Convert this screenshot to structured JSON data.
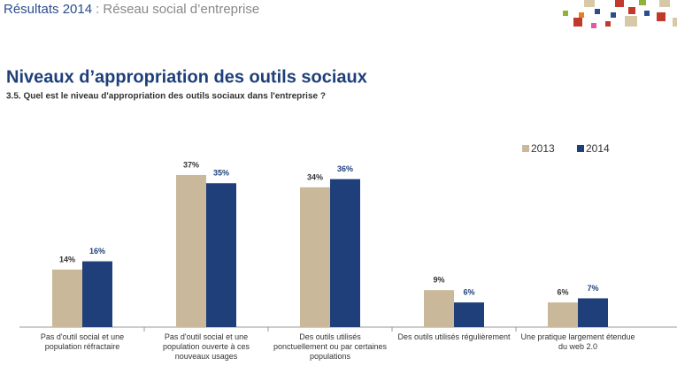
{
  "header": {
    "section": "Résultats 2014",
    "topic": ": Réseau social d’entreprise"
  },
  "chart_data": {
    "type": "bar",
    "title": "Niveaux d’appropriation des outils sociaux",
    "subtitle": "3.5. Quel est le niveau d'appropriation des outils sociaux dans l'entreprise  ?",
    "categories": [
      "Pas d'outil social et une population réfractaire",
      "Pas d'outil social et une population ouverte à ces nouveaux usages",
      "Des outils utilisés ponctuellement ou par certaines populations",
      "Des outils utilisés régulièrement",
      "Une pratique largement étendue du web 2.0"
    ],
    "series": [
      {
        "name": "2013",
        "color": "#c9b99a",
        "values": [
          14,
          37,
          34,
          9,
          6
        ],
        "value_labels": [
          "14%",
          "37%",
          "34%",
          "9%",
          "6%"
        ]
      },
      {
        "name": "2014",
        "color": "#1f3f7a",
        "values": [
          16,
          35,
          36,
          6,
          7
        ],
        "value_labels": [
          "16%",
          "35%",
          "36%",
          "6%",
          "7%"
        ]
      }
    ],
    "legend": "top-right"
  }
}
